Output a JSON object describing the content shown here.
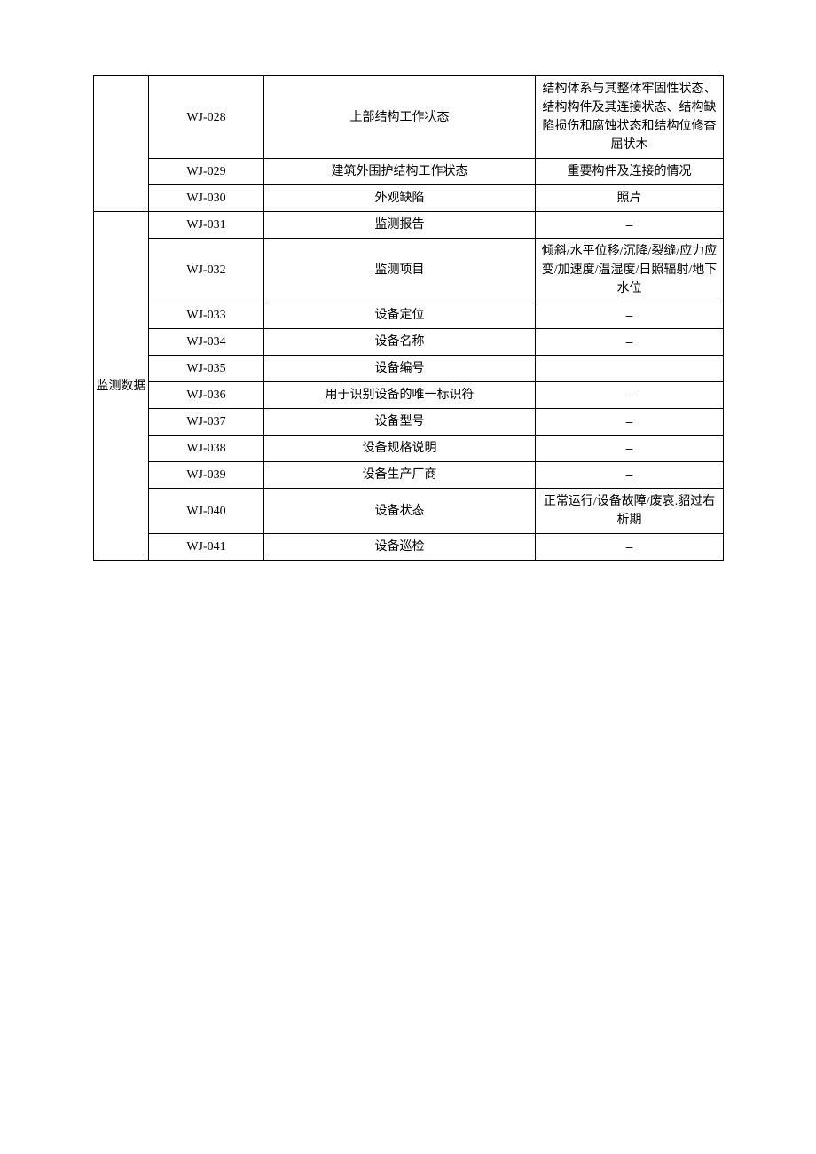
{
  "table": {
    "border_color": "#000000",
    "background_color": "#ffffff",
    "font_size": 14,
    "columns": {
      "category_width": 62,
      "code_width": 130,
      "name_width": 306,
      "desc_width": 212
    },
    "groups": [
      {
        "category": "",
        "category_rowspan": 3,
        "rows": [
          {
            "code": "WJ-028",
            "name": "上部结构工作状态",
            "desc": "结构体系与其整体牢固性状态、结构构件及其连接状态、结构缺陷损伤和腐蚀状态和结构位修杳屈状木"
          },
          {
            "code": "WJ-029",
            "name": "建筑外围护结构工作状态",
            "desc": "重要构件及连接的情况"
          },
          {
            "code": "WJ-030",
            "name": "外观缺陷",
            "desc": "照片"
          }
        ]
      },
      {
        "category": "监测数据",
        "category_rowspan": 11,
        "rows": [
          {
            "code": "WJ-031",
            "name": "监测报告",
            "desc": "–"
          },
          {
            "code": "WJ-032",
            "name": "监测项目",
            "desc": "倾斜/水平位移/沉降/裂缝/应力应变/加速度/温湿度/日照辐射/地下水位"
          },
          {
            "code": "WJ-033",
            "name": "设备定位",
            "desc": "–"
          },
          {
            "code": "WJ-034",
            "name": "设备名称",
            "desc": "–"
          },
          {
            "code": "WJ-035",
            "name": "设备编号",
            "desc": ""
          },
          {
            "code": "WJ-036",
            "name": "用于识别设备的唯一标识符",
            "desc": "–"
          },
          {
            "code": "WJ-037",
            "name": "设备型号",
            "desc": "–"
          },
          {
            "code": "WJ-038",
            "name": "设备规格说明",
            "desc": "–"
          },
          {
            "code": "WJ-039",
            "name": "设备生产厂商",
            "desc": "–"
          },
          {
            "code": "WJ-040",
            "name": "设备状态",
            "desc": "正常运行/设备故障/废哀.貂过右析期"
          },
          {
            "code": "WJ-041",
            "name": "设备巡检",
            "desc": "–"
          }
        ]
      }
    ]
  }
}
